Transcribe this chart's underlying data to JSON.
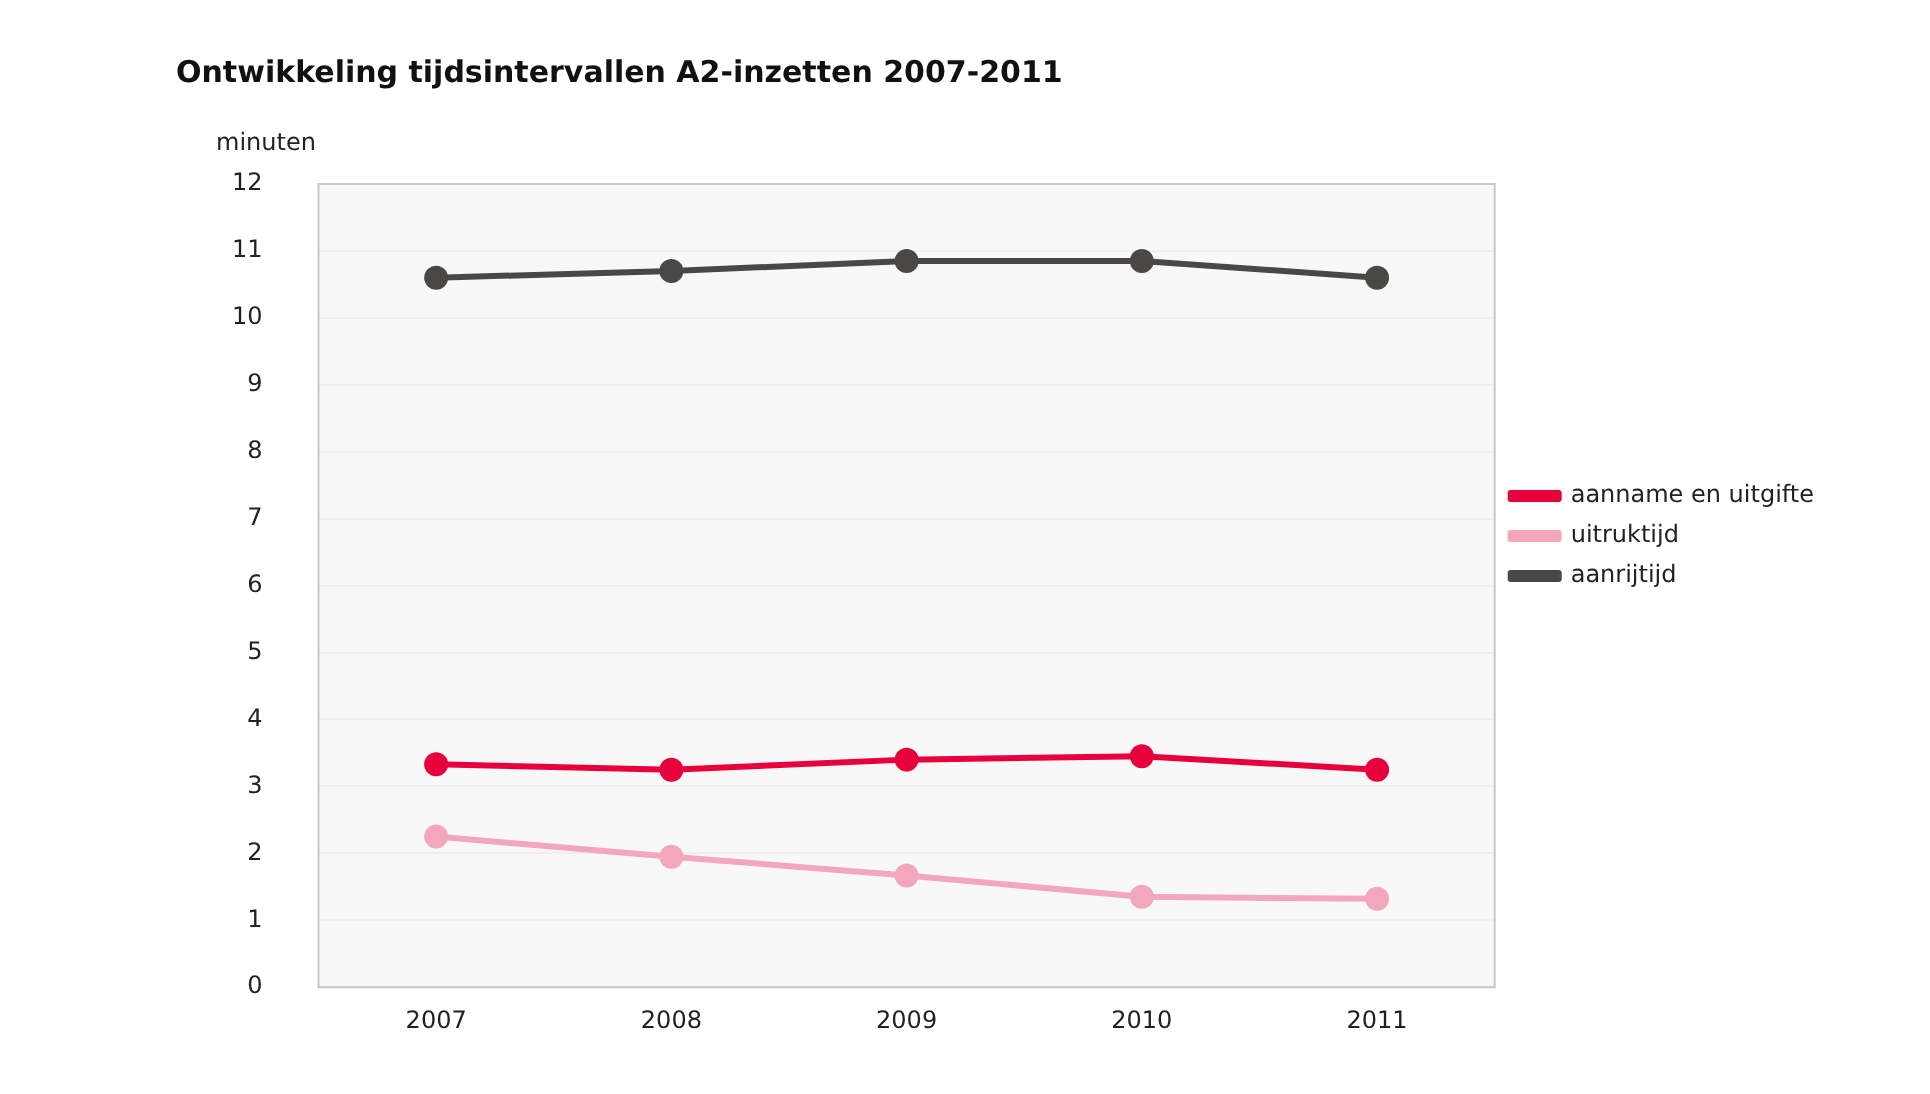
{
  "chart_data": {
    "type": "line",
    "title": "Ontwikkeling tijdsintervallen A2-inzetten 2007-2011",
    "ylabel": "minuten",
    "categories": [
      "2007",
      "2008",
      "2009",
      "2010",
      "2011"
    ],
    "series": [
      {
        "name": "aanname en uitgifte",
        "color": "#e8003d",
        "values": [
          3.33,
          3.25,
          3.4,
          3.45,
          3.25
        ]
      },
      {
        "name": "uitruktijd",
        "color": "#f2a7bd",
        "values": [
          2.25,
          1.95,
          1.67,
          1.35,
          1.32
        ]
      },
      {
        "name": "aanrijtijd",
        "color": "#4a4845",
        "values": [
          10.6,
          10.7,
          10.85,
          10.85,
          10.6
        ]
      }
    ],
    "ylim": [
      0,
      12
    ],
    "yticks": [
      0,
      1,
      2,
      3,
      4,
      5,
      6,
      7,
      8,
      9,
      10,
      11,
      12
    ],
    "grid": "y",
    "legend": "right",
    "marker": "circle",
    "line_style": "solid"
  }
}
